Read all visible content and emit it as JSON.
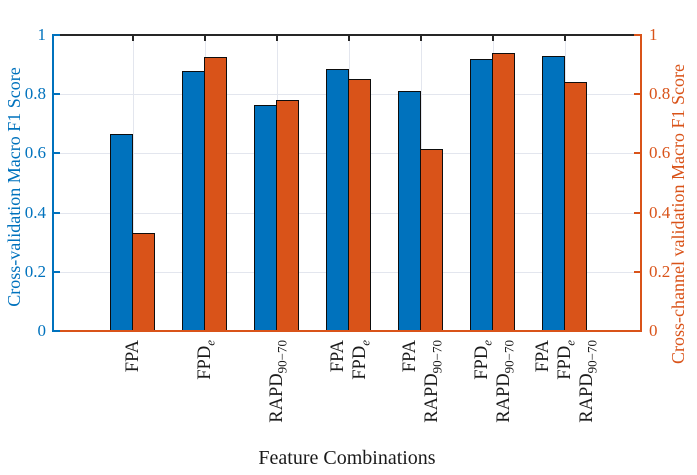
{
  "chart_data": {
    "type": "bar",
    "title": "",
    "xlabel": "Feature Combinations",
    "ylabel_left": "Cross-validation Macro F1 Score",
    "ylabel_right": "Cross-channel validation Macro F1 Score",
    "ylim": [
      0,
      1
    ],
    "yticks": [
      0,
      0.2,
      0.4,
      0.6,
      0.8,
      1
    ],
    "ytick_labels": [
      "0",
      "0.2",
      "0.4",
      "0.6",
      "0.8",
      "1"
    ],
    "grid": true,
    "legend": false,
    "categories": [
      {
        "lines": [
          "FPA"
        ]
      },
      {
        "lines": [
          "FPD_e"
        ]
      },
      {
        "lines": [
          "RAPD_90−70"
        ]
      },
      {
        "lines": [
          "FPA",
          "FPD_e"
        ]
      },
      {
        "lines": [
          "FPA",
          "RAPD_90−70"
        ]
      },
      {
        "lines": [
          "FPD_e",
          "RAPD_90−70"
        ]
      },
      {
        "lines": [
          "FPA",
          "FPD_e",
          "RAPD_90−70"
        ]
      }
    ],
    "series": [
      {
        "name": "Cross-validation Macro F1 Score",
        "axis": "left",
        "color": "#0072BD",
        "values": [
          0.665,
          0.88,
          0.765,
          0.885,
          0.81,
          0.92,
          0.93
        ]
      },
      {
        "name": "Cross-channel validation Macro F1 Score",
        "axis": "right",
        "color": "#D95319",
        "values": [
          0.33,
          0.925,
          0.78,
          0.85,
          0.615,
          0.94,
          0.84
        ]
      }
    ],
    "axis_colors": {
      "left": "#0072BD",
      "right": "#D95319",
      "top": "#262626",
      "bottom": "#D95319"
    },
    "grid_color": "#e3e6ee",
    "bar_edge_color": "#0d0d0d"
  }
}
